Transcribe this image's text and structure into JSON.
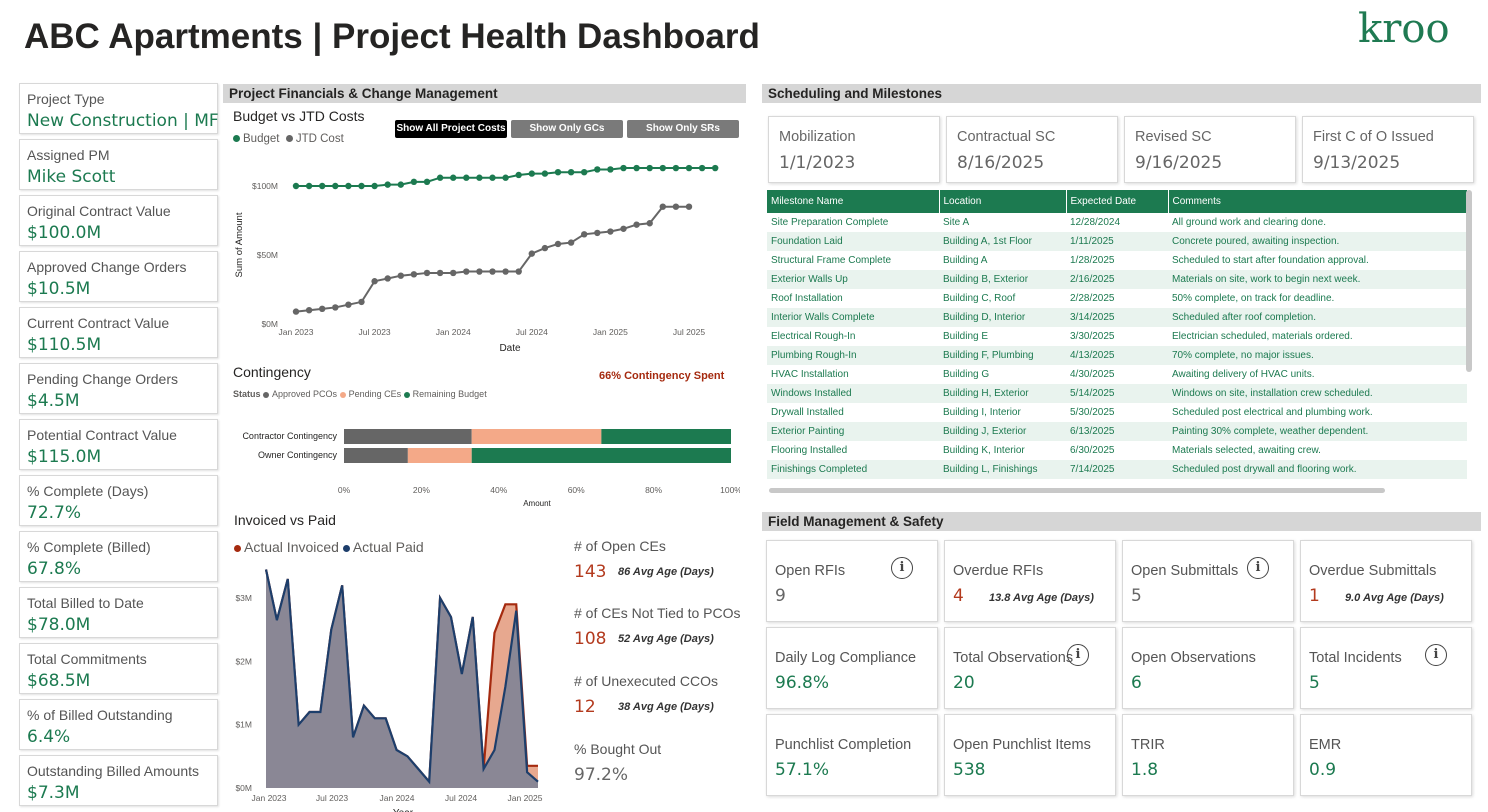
{
  "header": {
    "title": "ABC Apartments | Project Health Dashboard",
    "logo": "kroo"
  },
  "kpis": [
    {
      "label": "Project Type",
      "value": "New Construction | MF"
    },
    {
      "label": "Assigned PM",
      "value": "Mike Scott"
    },
    {
      "label": "Original Contract Value",
      "value": "$100.0M"
    },
    {
      "label": "Approved Change Orders",
      "value": "$10.5M"
    },
    {
      "label": "Current Contract Value",
      "value": "$110.5M"
    },
    {
      "label": "Pending Change Orders",
      "value": "$4.5M"
    },
    {
      "label": "Potential Contract Value",
      "value": "$115.0M"
    },
    {
      "label": "% Complete (Days)",
      "value": "72.7%"
    },
    {
      "label": "% Complete (Billed)",
      "value": "67.8%"
    },
    {
      "label": "Total Billed to Date",
      "value": "$78.0M"
    },
    {
      "label": "Total Commitments",
      "value": "$68.5M"
    },
    {
      "label": "% of Billed Outstanding",
      "value": "6.4%"
    },
    {
      "label": "Outstanding Billed Amounts",
      "value": "$7.3M"
    }
  ],
  "financials": {
    "section_title": "Project Financials & Change Management",
    "budget_title": "Budget vs JTD Costs",
    "buttons": [
      "Show All Project Costs",
      "Show Only GCs",
      "Show Only SRs"
    ],
    "contingency_title": "Contingency",
    "contingency_spent": "66% Contingency Spent",
    "status_label": "Status",
    "invoiced_title": "Invoiced vs Paid"
  },
  "ce_stats": [
    {
      "label": "# of Open CEs",
      "value": "143",
      "age": "86 Avg Age (Days)"
    },
    {
      "label": "# of CEs Not Tied to PCOs",
      "value": "108",
      "age": "52 Avg Age (Days)"
    },
    {
      "label": "# of Unexecuted CCOs",
      "value": "12",
      "age": "38 Avg Age (Days)"
    },
    {
      "label": "% Bought Out",
      "value": "97.2%",
      "age": ""
    }
  ],
  "scheduling": {
    "section_title": "Scheduling and Milestones",
    "cards": [
      {
        "label": "Mobilization",
        "value": "1/1/2023"
      },
      {
        "label": "Contractual SC",
        "value": "8/16/2025"
      },
      {
        "label": "Revised SC",
        "value": "9/16/2025"
      },
      {
        "label": "First C of O Issued",
        "value": "9/13/2025"
      }
    ],
    "table": {
      "headers": [
        "Milestone Name",
        "Location",
        "Expected Date",
        "Comments"
      ],
      "rows": [
        [
          "Site Preparation Complete",
          "Site A",
          "12/28/2024",
          "All ground work and clearing done."
        ],
        [
          "Foundation Laid",
          "Building A, 1st Floor",
          "1/11/2025",
          "Concrete poured, awaiting inspection."
        ],
        [
          "Structural Frame Complete",
          "Building A",
          "1/28/2025",
          "Scheduled to start after foundation approval."
        ],
        [
          "Exterior Walls Up",
          "Building B, Exterior",
          "2/16/2025",
          "Materials on site, work to begin next week."
        ],
        [
          "Roof Installation",
          "Building C, Roof",
          "2/28/2025",
          "50% complete, on track for deadline."
        ],
        [
          "Interior Walls Complete",
          "Building D, Interior",
          "3/14/2025",
          "Scheduled after roof completion."
        ],
        [
          "Electrical Rough-In",
          "Building E",
          "3/30/2025",
          "Electrician scheduled, materials ordered."
        ],
        [
          "Plumbing Rough-In",
          "Building F, Plumbing",
          "4/13/2025",
          "70% complete, no major issues."
        ],
        [
          "HVAC Installation",
          "Building G",
          "4/30/2025",
          "Awaiting delivery of HVAC units."
        ],
        [
          "Windows Installed",
          "Building H, Exterior",
          "5/14/2025",
          "Windows on site, installation crew scheduled."
        ],
        [
          "Drywall Installed",
          "Building I, Interior",
          "5/30/2025",
          "Scheduled post electrical and plumbing work."
        ],
        [
          "Exterior Painting",
          "Building J, Exterior",
          "6/13/2025",
          "Painting 30% complete, weather dependent."
        ],
        [
          "Flooring Installed",
          "Building K, Interior",
          "6/30/2025",
          "Materials selected, awaiting crew."
        ],
        [
          "Finishings Completed",
          "Building L, Finishings",
          "7/14/2025",
          "Scheduled post drywall and flooring work."
        ]
      ]
    }
  },
  "field": {
    "section_title": "Field Management & Safety",
    "cards": [
      {
        "label": "Open RFIs",
        "value": "9",
        "age": "",
        "info": true,
        "style": "gray"
      },
      {
        "label": "Overdue RFIs",
        "value": "4",
        "age": "13.8 Avg Age (Days)",
        "info": false,
        "style": "red"
      },
      {
        "label": "Open Submittals",
        "value": "5",
        "age": "",
        "info": true,
        "style": "gray"
      },
      {
        "label": "Overdue Submittals",
        "value": "1",
        "age": "9.0 Avg Age (Days)",
        "info": false,
        "style": "red"
      },
      {
        "label": "Daily Log Compliance",
        "value": "96.8%",
        "age": "",
        "info": false,
        "style": "green"
      },
      {
        "label": "Total Observations",
        "value": "20",
        "age": "",
        "info": true,
        "style": "green"
      },
      {
        "label": "Open Observations",
        "value": "6",
        "age": "",
        "info": false,
        "style": "green"
      },
      {
        "label": "Total Incidents",
        "value": "5",
        "age": "",
        "info": true,
        "style": "green"
      },
      {
        "label": "Punchlist Completion",
        "value": "57.1%",
        "age": "",
        "info": false,
        "style": "green"
      },
      {
        "label": "Open Punchlist Items",
        "value": "538",
        "age": "",
        "info": false,
        "style": "green"
      },
      {
        "label": "TRIR",
        "value": "1.8",
        "age": "",
        "info": false,
        "style": "green"
      },
      {
        "label": "EMR",
        "value": "0.9",
        "age": "",
        "info": false,
        "style": "green"
      }
    ]
  },
  "colors": {
    "green": "#1c7a50",
    "gray": "#666666",
    "salmon": "#f4a988",
    "red": "#a52a0f",
    "navy": "#1d3e6b"
  },
  "chart_data": [
    {
      "type": "line",
      "title": "Budget vs JTD Costs",
      "xlabel": "Date",
      "ylabel": "Sum of Amount",
      "x_ticks": [
        "Jan 2023",
        "Jul 2023",
        "Jan 2024",
        "Jul 2024",
        "Jan 2025",
        "Jul 2025"
      ],
      "y_ticks": [
        "$0M",
        "$50M",
        "$100M"
      ],
      "ylim": [
        0,
        130
      ],
      "x_months": [
        0,
        1,
        2,
        3,
        4,
        5,
        6,
        7,
        8,
        9,
        10,
        11,
        12,
        13,
        14,
        15,
        16,
        17,
        18,
        19,
        20,
        21,
        22,
        23,
        24,
        25,
        26,
        27,
        28,
        29,
        30,
        31,
        32
      ],
      "series": [
        {
          "name": "Budget",
          "color": "#1c7a50",
          "values": [
            100,
            100,
            100,
            100,
            100,
            100,
            100,
            101,
            101,
            103,
            103,
            106,
            106,
            106,
            106,
            106,
            106,
            108,
            109,
            109,
            110,
            110,
            110,
            112,
            112,
            113,
            113,
            113,
            113,
            113,
            113,
            113,
            113
          ]
        },
        {
          "name": "JTD Cost",
          "color": "#666666",
          "values": [
            9,
            10,
            11,
            12,
            14,
            16,
            31,
            33,
            35,
            36,
            37,
            37,
            37,
            38,
            38,
            38,
            38,
            38,
            51,
            55,
            58,
            59,
            65,
            66,
            67,
            69,
            72,
            73,
            85,
            85,
            85
          ]
        }
      ]
    },
    {
      "type": "bar",
      "title": "Contingency",
      "orientation": "horizontal-stacked-percent",
      "xlabel": "Amount",
      "x_ticks": [
        "0%",
        "20%",
        "40%",
        "60%",
        "80%",
        "100%"
      ],
      "categories": [
        "Contractor Contingency",
        "Owner Contingency"
      ],
      "series": [
        {
          "name": "Approved PCOs",
          "color": "#666666",
          "values": [
            33,
            16.5
          ]
        },
        {
          "name": "Pending CEs",
          "color": "#f4a988",
          "values": [
            33.5,
            16.5
          ]
        },
        {
          "name": "Remaining Budget",
          "color": "#1c7a50",
          "values": [
            33.5,
            67
          ]
        }
      ]
    },
    {
      "type": "area",
      "title": "Invoiced vs Paid",
      "xlabel": "Year",
      "x_ticks": [
        "Jan 2023",
        "Jul 2023",
        "Jan 2024",
        "Jul 2024",
        "Jan 2025"
      ],
      "y_ticks": [
        "$0M",
        "$1M",
        "$2M",
        "$3M"
      ],
      "ylim": [
        0,
        3.5
      ],
      "series": [
        {
          "name": "Actual Invoiced",
          "color": "#a52a0f",
          "values": [
            3.45,
            2.65,
            3.3,
            1.0,
            1.2,
            1.2,
            2.5,
            3.2,
            0.8,
            1.3,
            1.1,
            1.1,
            0.6,
            0.5,
            0.3,
            0.1,
            3.0,
            2.7,
            1.8,
            2.7,
            0.3,
            2.45,
            2.9,
            2.9,
            0.35,
            0.35
          ]
        },
        {
          "name": "Actual Paid",
          "color": "#1d3e6b",
          "values": [
            3.45,
            2.65,
            3.3,
            1.0,
            1.2,
            1.2,
            2.5,
            3.2,
            0.8,
            1.3,
            1.1,
            1.1,
            0.6,
            0.5,
            0.3,
            0.1,
            3.0,
            2.7,
            1.8,
            2.7,
            0.3,
            0.6,
            1.6,
            2.8,
            0.25,
            0.1
          ]
        }
      ]
    }
  ]
}
